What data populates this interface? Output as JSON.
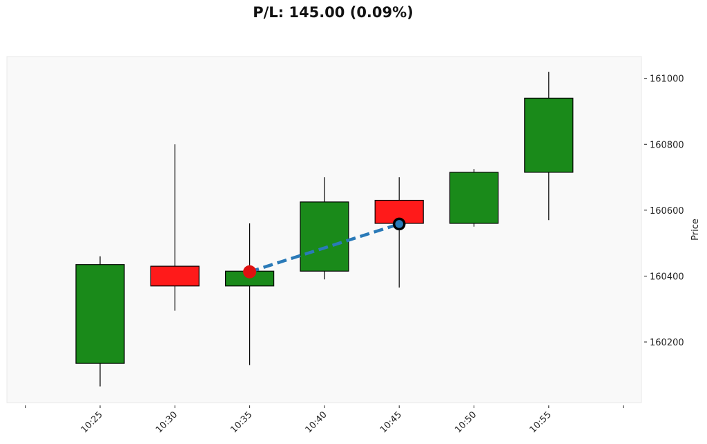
{
  "chart_data": {
    "type": "candlestick",
    "title": "P/L: 145.00 (0.09%)",
    "ylabel": "Price",
    "xlabel": "",
    "x_ticks": [
      "10:25",
      "10:30",
      "10:35",
      "10:40",
      "10:45",
      "10:50",
      "10:55"
    ],
    "ylim": [
      160000,
      161060
    ],
    "y_ticks": [
      160200,
      160400,
      160600,
      160800,
      161000
    ],
    "candles": [
      {
        "time": "10:25",
        "open": 160135,
        "high": 160460,
        "low": 160065,
        "close": 160435
      },
      {
        "time": "10:30",
        "open": 160430,
        "high": 160800,
        "low": 160295,
        "close": 160370
      },
      {
        "time": "10:35",
        "open": 160370,
        "high": 160560,
        "low": 160130,
        "close": 160415
      },
      {
        "time": "10:40",
        "open": 160415,
        "high": 160700,
        "low": 160390,
        "close": 160625
      },
      {
        "time": "10:45",
        "open": 160630,
        "high": 160700,
        "low": 160365,
        "close": 160560
      },
      {
        "time": "10:50",
        "open": 160560,
        "high": 160725,
        "low": 160550,
        "close": 160715
      },
      {
        "time": "10:55",
        "open": 160715,
        "high": 161020,
        "low": 160570,
        "close": 160940
      }
    ],
    "trade": {
      "entry": {
        "time": "10:35",
        "price": 160413
      },
      "exit": {
        "time": "10:45",
        "price": 160558
      }
    },
    "colors": {
      "up": "#1a8a1a",
      "down": "#ff1a1a",
      "trade_line": "#2a7ab8",
      "entry_marker": "#e01010",
      "exit_marker": "#000000",
      "background": "#f9f9f9"
    }
  }
}
